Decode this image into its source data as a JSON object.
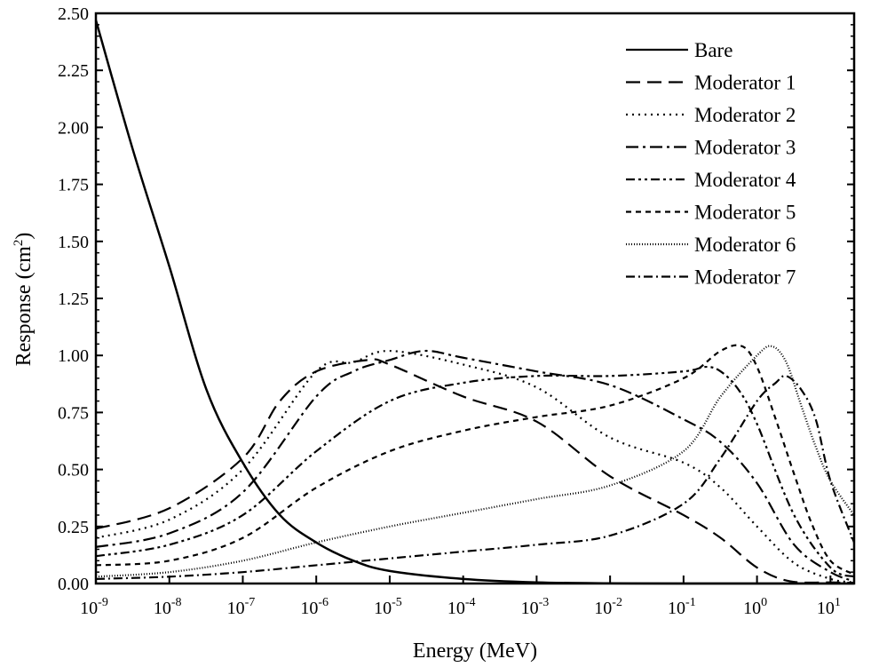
{
  "chart_data": {
    "type": "line",
    "xlabel": "Energy (MeV)",
    "ylabel": "Response (cm",
    "ylabel_sup": "2",
    "ylabel_end": ")",
    "xscale": "log",
    "xlim": [
      1e-09,
      21
    ],
    "ylim": [
      0,
      2.5
    ],
    "grid": false,
    "legend": "top-right",
    "x_ticks": [
      {
        "base": "10",
        "exp": "-9",
        "v": -9
      },
      {
        "base": "10",
        "exp": "-8",
        "v": -8
      },
      {
        "base": "10",
        "exp": "-7",
        "v": -7
      },
      {
        "base": "10",
        "exp": "-6",
        "v": -6
      },
      {
        "base": "10",
        "exp": "-5",
        "v": -5
      },
      {
        "base": "10",
        "exp": "-4",
        "v": -4
      },
      {
        "base": "10",
        "exp": "-3",
        "v": -3
      },
      {
        "base": "10",
        "exp": "-2",
        "v": -2
      },
      {
        "base": "10",
        "exp": "-1",
        "v": -1
      },
      {
        "base": "10",
        "exp": "0",
        "v": 0
      },
      {
        "base": "10",
        "exp": "1",
        "v": 1
      }
    ],
    "y_ticks": [
      "0.00",
      "0.25",
      "0.50",
      "0.75",
      "1.00",
      "1.25",
      "1.50",
      "1.75",
      "2.00",
      "2.25",
      "2.50"
    ],
    "series": [
      {
        "name": "Bare",
        "dash": "",
        "x": [
          1e-09,
          3.2e-09,
          1e-08,
          3.2e-08,
          1e-07,
          3.2e-07,
          1e-06,
          3.2e-06,
          1e-05,
          0.0001,
          0.001,
          0.01,
          0.1,
          21
        ],
        "y": [
          2.47,
          1.9,
          1.39,
          0.85,
          0.53,
          0.3,
          0.18,
          0.1,
          0.055,
          0.02,
          0.005,
          0.001,
          0,
          0
        ]
      },
      {
        "name": "Moderator 1",
        "dash": "16 8",
        "x": [
          1e-09,
          1e-08,
          1e-07,
          3.2e-07,
          1e-06,
          5e-06,
          1e-05,
          0.0001,
          0.001,
          0.01,
          0.1,
          0.32,
          1,
          2.8,
          10,
          21
        ],
        "y": [
          0.24,
          0.33,
          0.55,
          0.8,
          0.93,
          0.98,
          0.96,
          0.82,
          0.71,
          0.47,
          0.3,
          0.2,
          0.07,
          0.01,
          0.005,
          0.003
        ]
      },
      {
        "name": "Moderator 2",
        "dash": "2 5",
        "x": [
          1e-09,
          1e-08,
          1e-07,
          1e-06,
          3.2e-06,
          1e-05,
          0.0001,
          0.001,
          0.01,
          0.1,
          0.32,
          1,
          3.2,
          10,
          21
        ],
        "y": [
          0.2,
          0.28,
          0.5,
          0.93,
          0.97,
          1.02,
          0.96,
          0.86,
          0.64,
          0.53,
          0.42,
          0.25,
          0.09,
          0.02,
          0.005
        ]
      },
      {
        "name": "Moderator 3",
        "dash": "14 5 3 5",
        "x": [
          1e-09,
          1e-08,
          1e-07,
          1e-06,
          3.2e-06,
          1e-05,
          3e-05,
          0.0001,
          0.001,
          0.01,
          0.1,
          0.32,
          1,
          3.2,
          10,
          21
        ],
        "y": [
          0.16,
          0.22,
          0.4,
          0.82,
          0.93,
          0.98,
          1.02,
          0.99,
          0.93,
          0.87,
          0.72,
          0.62,
          0.44,
          0.17,
          0.05,
          0.01
        ]
      },
      {
        "name": "Moderator 4",
        "dash": "10 4 3 4 3 4",
        "x": [
          1e-09,
          1e-08,
          1e-07,
          1e-06,
          1e-05,
          0.0001,
          0.001,
          0.01,
          0.1,
          0.2,
          0.32,
          0.56,
          1,
          3.2,
          10,
          21
        ],
        "y": [
          0.12,
          0.17,
          0.3,
          0.58,
          0.8,
          0.88,
          0.91,
          0.91,
          0.93,
          0.95,
          0.93,
          0.85,
          0.7,
          0.3,
          0.07,
          0.03
        ]
      },
      {
        "name": "Moderator 5",
        "dash": "6 5",
        "x": [
          1e-09,
          1e-08,
          1e-07,
          1e-06,
          1e-05,
          0.0001,
          0.001,
          0.01,
          0.1,
          0.32,
          0.63,
          1,
          1.8,
          3.2,
          5.6,
          10,
          21
        ],
        "y": [
          0.08,
          0.1,
          0.2,
          0.42,
          0.58,
          0.67,
          0.73,
          0.78,
          0.9,
          1.02,
          1.04,
          0.95,
          0.72,
          0.48,
          0.26,
          0.1,
          0.04
        ]
      },
      {
        "name": "Moderator 6",
        "dash": "1 2",
        "x": [
          1e-09,
          1e-08,
          1e-07,
          1e-06,
          1e-05,
          0.0001,
          0.001,
          0.01,
          0.1,
          0.32,
          1,
          1.6,
          2.5,
          4,
          6.3,
          10,
          21
        ],
        "y": [
          0.03,
          0.05,
          0.1,
          0.18,
          0.25,
          0.31,
          0.37,
          0.43,
          0.58,
          0.82,
          1.0,
          1.04,
          0.97,
          0.78,
          0.6,
          0.45,
          0.3
        ]
      },
      {
        "name": "Moderator 7",
        "dash": "10 4 2 4",
        "x": [
          1e-09,
          1e-08,
          1e-07,
          1e-06,
          1e-05,
          0.0001,
          0.001,
          0.01,
          0.1,
          0.32,
          1,
          1.8,
          2.5,
          4,
          6.3,
          10,
          21
        ],
        "y": [
          0.02,
          0.03,
          0.05,
          0.08,
          0.11,
          0.14,
          0.17,
          0.21,
          0.35,
          0.55,
          0.8,
          0.88,
          0.91,
          0.85,
          0.72,
          0.45,
          0.18
        ]
      }
    ]
  }
}
